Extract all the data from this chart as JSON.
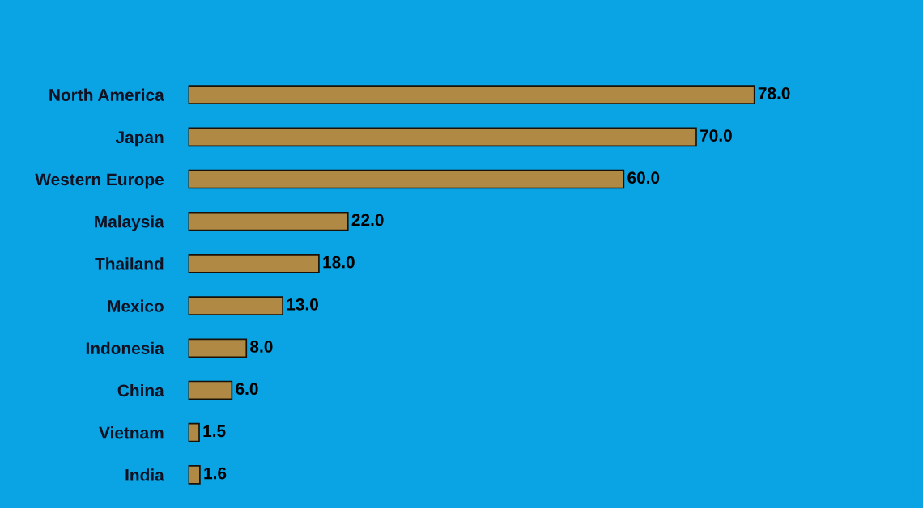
{
  "chart_data": {
    "type": "bar",
    "orientation": "horizontal",
    "categories": [
      "North America",
      "Japan",
      "Western Europe",
      "Malaysia",
      "Thailand",
      "Mexico",
      "Indonesia",
      "China",
      "Vietnam",
      "India"
    ],
    "values": [
      78.0,
      70.0,
      60.0,
      22.0,
      18.0,
      13.0,
      8.0,
      6.0,
      1.5,
      1.6
    ],
    "value_labels": [
      "78.0",
      "70.0",
      "60.0",
      "22.0",
      "18.0",
      "13.0",
      "8.0",
      "6.0",
      "1.5",
      "1.6"
    ],
    "color": "#b08a45",
    "tick_labels": "y",
    "grid": false,
    "legend": false
  }
}
